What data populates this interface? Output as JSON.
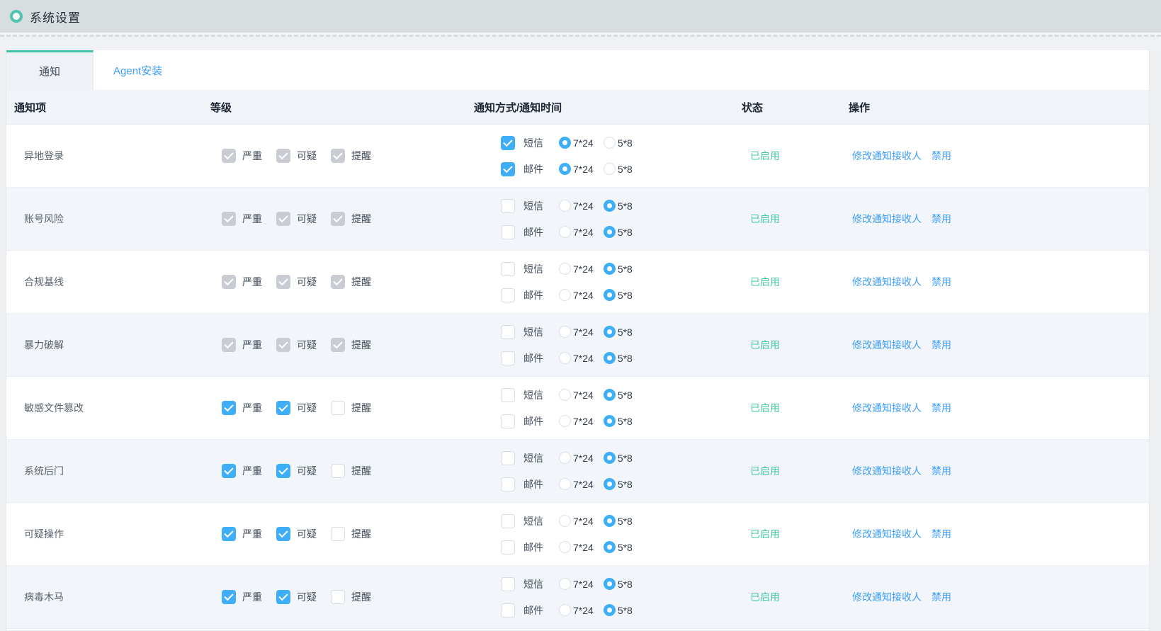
{
  "header": {
    "title": "系统设置"
  },
  "tabs": [
    {
      "label": "通知",
      "active": true
    },
    {
      "label": "Agent安装",
      "active": false
    }
  ],
  "colors": {
    "accent_blue": "#3daef7",
    "link_blue": "#3c9cf5",
    "status_green": "#42c9a2",
    "tab_teal": "#3fc2a7"
  },
  "table": {
    "columns": [
      "通知项",
      "等级",
      "通知方式/通知时间",
      "状态",
      "操作"
    ],
    "schedule_options": [
      "7*24",
      "5*8"
    ],
    "rows": [
      {
        "name": "异地登录",
        "levels": [
          {
            "label": "严重",
            "state": "disabled-checked"
          },
          {
            "label": "可疑",
            "state": "disabled-checked"
          },
          {
            "label": "提醒",
            "state": "disabled-checked"
          }
        ],
        "methods": [
          {
            "label": "短信",
            "checked": true,
            "schedule": "7*24"
          },
          {
            "label": "邮件",
            "checked": true,
            "schedule": "7*24"
          }
        ],
        "status": "已启用",
        "actions": [
          "修改通知接收人",
          "禁用"
        ]
      },
      {
        "name": "账号风险",
        "levels": [
          {
            "label": "严重",
            "state": "disabled-checked"
          },
          {
            "label": "可疑",
            "state": "disabled-checked"
          },
          {
            "label": "提醒",
            "state": "disabled-checked"
          }
        ],
        "methods": [
          {
            "label": "短信",
            "checked": false,
            "schedule": "5*8"
          },
          {
            "label": "邮件",
            "checked": false,
            "schedule": "5*8"
          }
        ],
        "status": "已启用",
        "actions": [
          "修改通知接收人",
          "禁用"
        ]
      },
      {
        "name": "合规基线",
        "levels": [
          {
            "label": "严重",
            "state": "disabled-checked"
          },
          {
            "label": "可疑",
            "state": "disabled-checked"
          },
          {
            "label": "提醒",
            "state": "disabled-checked"
          }
        ],
        "methods": [
          {
            "label": "短信",
            "checked": false,
            "schedule": "5*8"
          },
          {
            "label": "邮件",
            "checked": false,
            "schedule": "5*8"
          }
        ],
        "status": "已启用",
        "actions": [
          "修改通知接收人",
          "禁用"
        ]
      },
      {
        "name": "暴力破解",
        "levels": [
          {
            "label": "严重",
            "state": "disabled-checked"
          },
          {
            "label": "可疑",
            "state": "disabled-checked"
          },
          {
            "label": "提醒",
            "state": "disabled-checked"
          }
        ],
        "methods": [
          {
            "label": "短信",
            "checked": false,
            "schedule": "5*8"
          },
          {
            "label": "邮件",
            "checked": false,
            "schedule": "5*8"
          }
        ],
        "status": "已启用",
        "actions": [
          "修改通知接收人",
          "禁用"
        ]
      },
      {
        "name": "敏感文件篡改",
        "levels": [
          {
            "label": "严重",
            "state": "checked"
          },
          {
            "label": "可疑",
            "state": "checked"
          },
          {
            "label": "提醒",
            "state": "unchecked"
          }
        ],
        "methods": [
          {
            "label": "短信",
            "checked": false,
            "schedule": "5*8"
          },
          {
            "label": "邮件",
            "checked": false,
            "schedule": "5*8"
          }
        ],
        "status": "已启用",
        "actions": [
          "修改通知接收人",
          "禁用"
        ]
      },
      {
        "name": "系统后门",
        "levels": [
          {
            "label": "严重",
            "state": "checked"
          },
          {
            "label": "可疑",
            "state": "checked"
          },
          {
            "label": "提醒",
            "state": "unchecked"
          }
        ],
        "methods": [
          {
            "label": "短信",
            "checked": false,
            "schedule": "5*8"
          },
          {
            "label": "邮件",
            "checked": false,
            "schedule": "5*8"
          }
        ],
        "status": "已启用",
        "actions": [
          "修改通知接收人",
          "禁用"
        ]
      },
      {
        "name": "可疑操作",
        "levels": [
          {
            "label": "严重",
            "state": "checked"
          },
          {
            "label": "可疑",
            "state": "checked"
          },
          {
            "label": "提醒",
            "state": "unchecked"
          }
        ],
        "methods": [
          {
            "label": "短信",
            "checked": false,
            "schedule": "5*8"
          },
          {
            "label": "邮件",
            "checked": false,
            "schedule": "5*8"
          }
        ],
        "status": "已启用",
        "actions": [
          "修改通知接收人",
          "禁用"
        ]
      },
      {
        "name": "病毒木马",
        "levels": [
          {
            "label": "严重",
            "state": "checked"
          },
          {
            "label": "可疑",
            "state": "checked"
          },
          {
            "label": "提醒",
            "state": "unchecked"
          }
        ],
        "methods": [
          {
            "label": "短信",
            "checked": false,
            "schedule": "5*8"
          },
          {
            "label": "邮件",
            "checked": false,
            "schedule": "5*8"
          }
        ],
        "status": "已启用",
        "actions": [
          "修改通知接收人",
          "禁用"
        ]
      }
    ]
  }
}
